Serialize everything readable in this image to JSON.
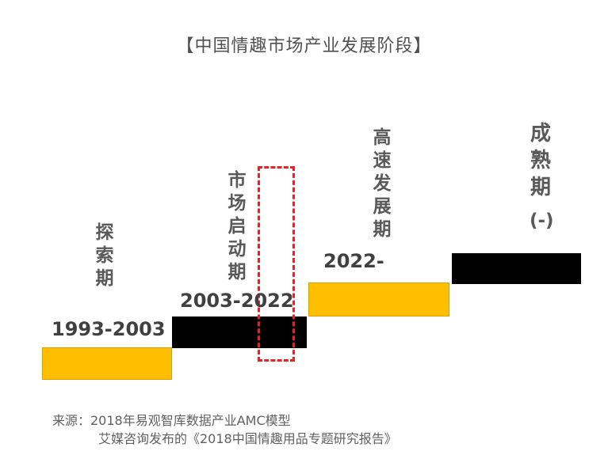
{
  "title": "【中国情趣市场产业发展阶段】",
  "stages": [
    {
      "name": "探索期",
      "chars": [
        "探",
        "索",
        "期"
      ],
      "years": "1993-2003"
    },
    {
      "name": "市场启动期",
      "chars": [
        "市",
        "场",
        "启",
        "动",
        "期"
      ],
      "years": "2003-2022"
    },
    {
      "name": "高速发展期",
      "chars": [
        "高",
        "速",
        "发",
        "展",
        "期"
      ],
      "years": "2022-"
    },
    {
      "name": "成熟期",
      "chars": [
        "成",
        "熟",
        "期"
      ],
      "note": "(-)"
    }
  ],
  "colors": {
    "gold": "#ffbf00",
    "black": "#000000",
    "highlight": "#e8202a"
  },
  "source": {
    "line1": "来源：2018年易观智库数据产业AMC模型",
    "line2": "艾媒咨询发布的《2018中国情趣用品专题研究报告》"
  }
}
